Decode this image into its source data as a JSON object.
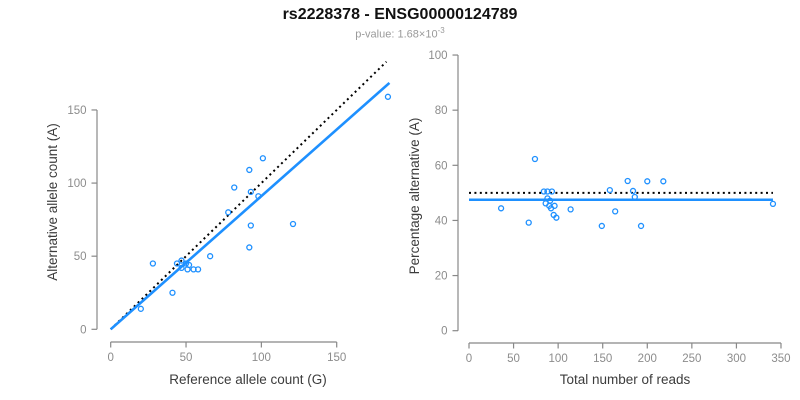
{
  "figure": {
    "title": "rs2228378 - ENSG00000124789",
    "subtitle_prefix": "p-value: ",
    "subtitle_coefficient": "1.68",
    "subtitle_multiplier": "×10",
    "subtitle_exponent": "-3"
  },
  "colors": {
    "point_blue": "#1E90FF",
    "fit_line_blue": "#1E90FF",
    "reference_line_black": "#000000",
    "axis_gray": "#888888",
    "tick_label_gray": "#8c8c8c",
    "axis_title_gray": "#3c3c3c",
    "title_black": "#111111",
    "subtitle_gray": "#9a9a9a",
    "background": "#ffffff"
  },
  "chart_data": [
    {
      "type": "scatter",
      "panel": "left",
      "xlabel": "Reference allele count (G)",
      "ylabel": "Alternative allele count (A)",
      "xticks": [
        0,
        50,
        100,
        150
      ],
      "yticks": [
        0,
        50,
        100,
        150
      ],
      "xlim": [
        0,
        186
      ],
      "ylim": [
        0,
        185
      ],
      "grid": false,
      "legend": "none",
      "points": [
        [
          20,
          14
        ],
        [
          41,
          25
        ],
        [
          28,
          45
        ],
        [
          44,
          45
        ],
        [
          47,
          47
        ],
        [
          50,
          45
        ],
        [
          52,
          44
        ],
        [
          47,
          42
        ],
        [
          51,
          41
        ],
        [
          55,
          41
        ],
        [
          58,
          41
        ],
        [
          66,
          50
        ],
        [
          92,
          56
        ],
        [
          78,
          80
        ],
        [
          93,
          71
        ],
        [
          121,
          72
        ],
        [
          82,
          97
        ],
        [
          93,
          94
        ],
        [
          98,
          91
        ],
        [
          92,
          109
        ],
        [
          101,
          117
        ],
        [
          184,
          159
        ]
      ],
      "lines": [
        {
          "name": "identity-line",
          "style": "dotted",
          "color": "#000000",
          "x1": 0,
          "y1": 0,
          "x2": 183,
          "y2": 183
        },
        {
          "name": "regression-line",
          "style": "solid",
          "color": "#1E90FF",
          "x1": 0,
          "y1": 0,
          "x2": 185,
          "y2": 168.5
        }
      ]
    },
    {
      "type": "scatter",
      "panel": "right",
      "xlabel": "Total number of reads",
      "ylabel": "Percentage alternative (A)",
      "xticks": [
        0,
        50,
        100,
        150,
        200,
        250,
        300,
        350
      ],
      "yticks": [
        0,
        20,
        40,
        60,
        80,
        100
      ],
      "xlim": [
        0,
        355
      ],
      "ylim": [
        0,
        100
      ],
      "grid": false,
      "legend": "none",
      "points": [
        [
          36,
          44.4
        ],
        [
          67,
          39.2
        ],
        [
          74,
          62.3
        ],
        [
          84,
          50.5
        ],
        [
          88,
          50.5
        ],
        [
          93,
          50.5
        ],
        [
          88,
          48
        ],
        [
          91,
          47.2
        ],
        [
          86,
          46.2
        ],
        [
          90,
          45.3
        ],
        [
          96,
          45.3
        ],
        [
          92,
          44.4
        ],
        [
          95,
          42
        ],
        [
          98,
          41
        ],
        [
          114,
          44
        ],
        [
          149,
          38
        ],
        [
          158,
          51
        ],
        [
          164,
          43.3
        ],
        [
          178,
          54.3
        ],
        [
          184,
          50.7
        ],
        [
          186,
          48.5
        ],
        [
          193,
          38
        ],
        [
          200,
          54.2
        ],
        [
          218,
          54.2
        ],
        [
          341,
          46
        ]
      ],
      "lines": [
        {
          "name": "expected-50pct-line",
          "style": "dotted",
          "color": "#000000",
          "x1": 0,
          "y1": 50,
          "x2": 341,
          "y2": 50
        },
        {
          "name": "mean-percentage-line",
          "style": "solid",
          "color": "#1E90FF",
          "x1": 0,
          "y1": 47.5,
          "x2": 341,
          "y2": 47.5
        }
      ]
    }
  ]
}
